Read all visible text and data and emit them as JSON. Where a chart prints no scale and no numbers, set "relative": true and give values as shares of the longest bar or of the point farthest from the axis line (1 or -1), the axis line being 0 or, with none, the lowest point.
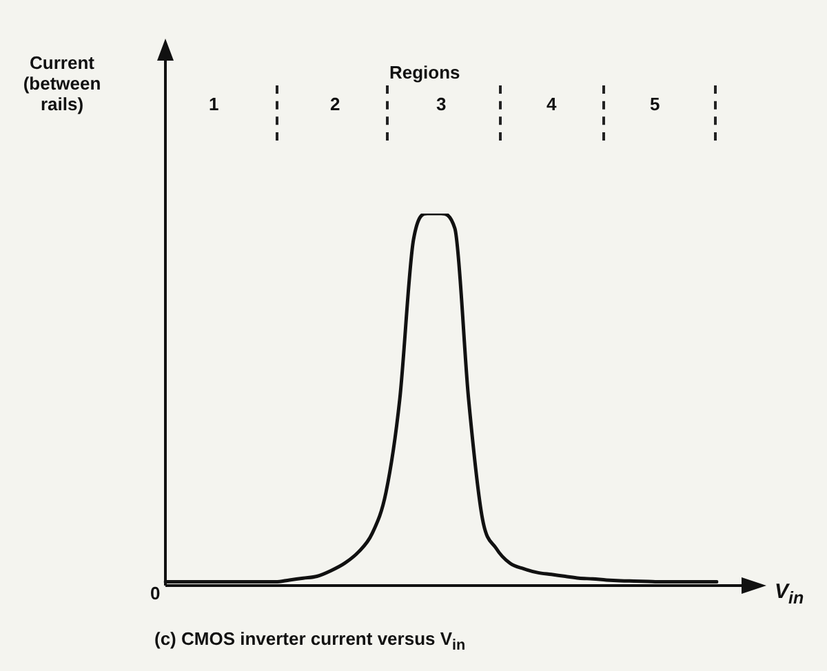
{
  "chart_data": {
    "type": "line",
    "relative": true,
    "xlabel": "V$_{in}$",
    "categories": [
      null,
      null,
      null,
      null,
      null,
      null,
      null,
      null,
      null,
      null,
      null,
      null,
      null,
      null,
      null,
      null,
      null,
      null,
      null,
      null,
      null,
      null,
      null,
      null,
      null,
      null,
      null,
      null,
      null,
      null,
      null,
      null,
      null,
      null,
      null,
      null,
      null,
      null,
      null,
      null,
      null
    ],
    "series": [
      {
        "color": "#111111",
        "values": [
          0.01,
          0.01,
          0.01,
          0.01,
          0.01,
          0.01,
          0.01,
          0.01,
          0.01,
          0.015,
          0.02,
          0.025,
          0.04,
          0.06,
          0.09,
          0.14,
          0.25,
          0.5,
          0.93,
          1,
          1,
          0.96,
          0.5,
          0.18,
          0.1,
          0.06,
          0.045,
          0.035,
          0.03,
          0.025,
          0.02,
          0.018,
          0.015,
          0.013,
          0.012,
          0.011,
          0.01,
          0.01,
          0.01,
          0.01,
          0.01
        ]
      }
    ],
    "annotations": [
      "Regions",
      "1",
      "2",
      "3",
      "4",
      "5",
      "0",
      "(c) CMOS inverter current versus V$_{in}$",
      "Current (between rails)"
    ],
    "legend": false,
    "marker": "none",
    "line_style": "solid"
  }
}
